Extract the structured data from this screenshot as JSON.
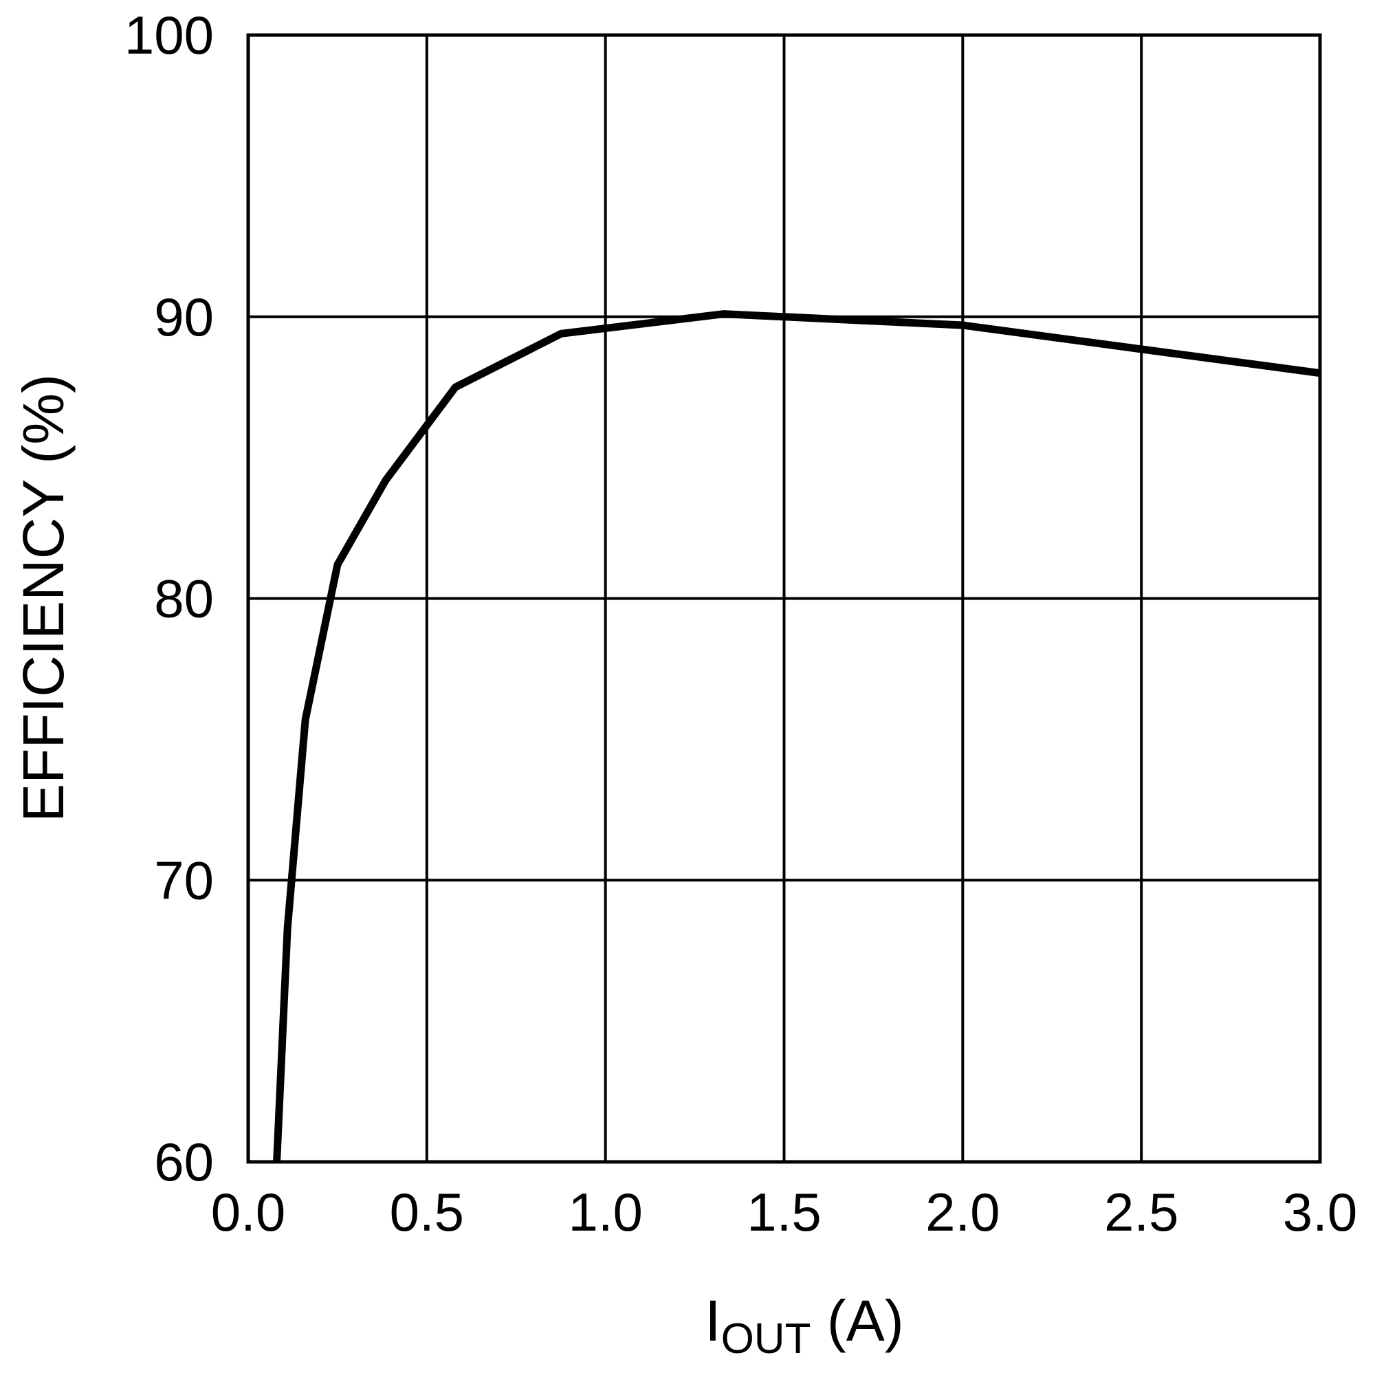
{
  "chart_data": {
    "type": "line",
    "xlabel": {
      "main": "I",
      "sub": "OUT",
      "rest": " (A)"
    },
    "ylabel": "EFFICIENCY (%)",
    "xlim": [
      0,
      3
    ],
    "ylim": [
      60,
      100
    ],
    "xticks": [
      {
        "value": 0,
        "label": "0.0"
      },
      {
        "value": 0.5,
        "label": "0.5"
      },
      {
        "value": 1,
        "label": "1.0"
      },
      {
        "value": 1.5,
        "label": "1.5"
      },
      {
        "value": 2,
        "label": "2.0"
      },
      {
        "value": 2.5,
        "label": "2.5"
      },
      {
        "value": 3,
        "label": "3.0"
      }
    ],
    "yticks": [
      60,
      70,
      80,
      90,
      100
    ],
    "grid": true,
    "x": [
      0.08,
      0.11,
      0.16,
      0.25,
      0.385,
      0.58,
      0.876,
      1.33,
      2.0,
      3.0
    ],
    "series": [
      {
        "color": "#000000",
        "values": [
          60,
          68.3,
          75.7,
          81.2,
          84.2,
          87.5,
          89.4,
          90.1,
          89.7,
          88.0
        ]
      }
    ]
  }
}
